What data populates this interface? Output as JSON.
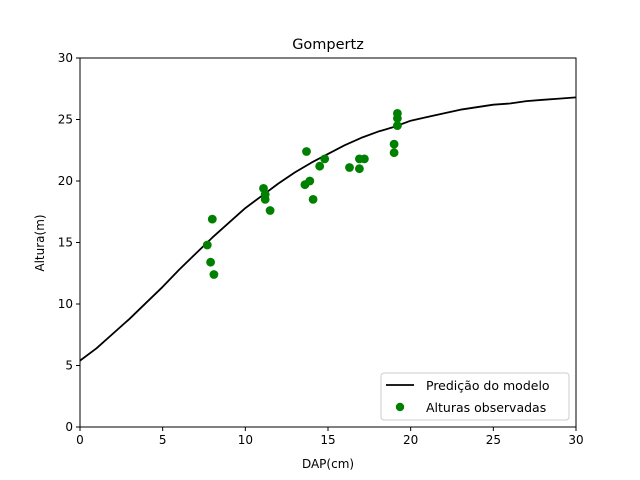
{
  "chart_data": {
    "type": "scatter",
    "title": "Gompertz",
    "xlabel": "DAP(cm)",
    "ylabel": "Altura(m)",
    "xlim": [
      0,
      30
    ],
    "ylim": [
      0,
      30
    ],
    "xticks": [
      0,
      5,
      10,
      15,
      20,
      25,
      30
    ],
    "yticks": [
      0,
      5,
      10,
      15,
      20,
      25,
      30
    ],
    "grid": false,
    "legend_position": "lower-right",
    "series": [
      {
        "name": "Predição do modelo",
        "kind": "line",
        "color": "#000000",
        "x": [
          0,
          1,
          2,
          3,
          4,
          5,
          6,
          7,
          8,
          9,
          10,
          11,
          12,
          13,
          14,
          15,
          16,
          17,
          18,
          19,
          20,
          21,
          22,
          23,
          24,
          25,
          26,
          27,
          28,
          29,
          30
        ],
        "y": [
          5.4,
          6.4,
          7.6,
          8.8,
          10.1,
          11.4,
          12.8,
          14.1,
          15.4,
          16.6,
          17.8,
          18.8,
          19.8,
          20.7,
          21.5,
          22.2,
          22.9,
          23.5,
          24.0,
          24.4,
          24.9,
          25.2,
          25.5,
          25.8,
          26.0,
          26.2,
          26.3,
          26.5,
          26.6,
          26.7,
          26.8
        ]
      },
      {
        "name": "Alturas observadas",
        "kind": "scatter",
        "color": "#008000",
        "x": [
          7.7,
          7.9,
          8.0,
          8.1,
          11.1,
          11.2,
          11.2,
          11.5,
          13.6,
          13.7,
          13.9,
          14.1,
          14.5,
          14.8,
          16.3,
          16.9,
          16.9,
          17.2,
          19.0,
          19.0,
          19.2,
          19.2,
          19.2
        ],
        "y": [
          14.8,
          13.4,
          16.9,
          12.4,
          19.4,
          18.9,
          18.5,
          17.6,
          19.7,
          22.4,
          20.0,
          18.5,
          21.2,
          21.8,
          21.1,
          21.8,
          21.0,
          21.8,
          22.3,
          23.0,
          24.5,
          25.1,
          25.5
        ]
      }
    ]
  }
}
